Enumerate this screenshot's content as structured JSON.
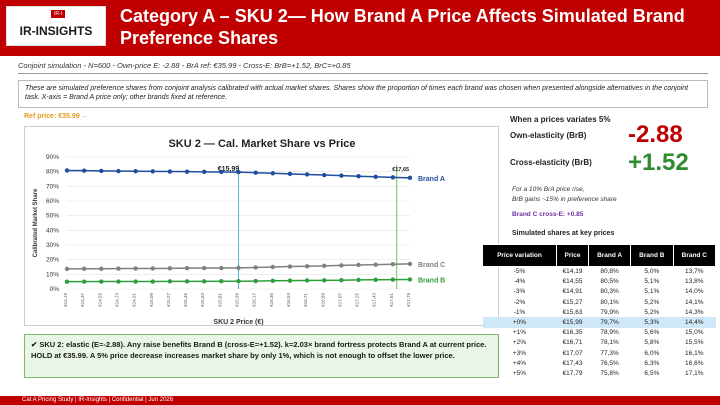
{
  "header": {
    "logo_text": "IR-INSIGHTS",
    "logo_badge": "IR-I",
    "title": "Category A – SKU 2— How Brand A Price Affects Simulated Brand Preference Shares"
  },
  "subtitle": "Conjoint simulation - N=600 - Own-price E: -2.88 - BrA ref: €35.99 - Cross-E: BrB=+1.52, BrC=+0.85",
  "description": "These are simulated preference shares from conjoint analysis calibrated with actual market shares. Shares show the proportion of times each brand was chosen when presented alongside alternatives in the conjoint task.  X-axis = Brand A price only; other brands fixed at reference.",
  "ref_price": "Ref price: €35.99 ←",
  "chart_data": {
    "type": "line",
    "title": "SKU 2 — Cal. Market Share vs Price",
    "xlabel": "SKU 2 Price (€)",
    "ylabel": "Calibrated Market Share",
    "ylim": [
      0,
      90
    ],
    "yticks": [
      "0%",
      "10%",
      "20%",
      "30%",
      "40%",
      "50%",
      "60%",
      "70%",
      "80%",
      "90%"
    ],
    "markers": [
      {
        "label": "€15,99",
        "x": 15.99,
        "color": "#5bb5e6"
      },
      {
        "label": "€17,65",
        "x": 17.65,
        "color": "#7cc24a"
      }
    ],
    "x": [
      14.19,
      14.37,
      14.55,
      14.73,
      14.91,
      15.09,
      15.27,
      15.45,
      15.63,
      15.81,
      15.99,
      16.17,
      16.35,
      16.53,
      16.71,
      16.89,
      17.07,
      17.25,
      17.43,
      17.61,
      17.79
    ],
    "series": [
      {
        "name": "Brand A",
        "color": "#1f4e9e",
        "values": [
          80.8,
          80.7,
          80.5,
          80.4,
          80.3,
          80.2,
          80.1,
          80.0,
          79.9,
          79.8,
          79.7,
          79.3,
          78.9,
          78.5,
          78.1,
          77.7,
          77.3,
          76.9,
          76.5,
          76.1,
          75.8
        ]
      },
      {
        "name": "Brand B",
        "color": "#2e9e3a",
        "values": [
          5.0,
          5.0,
          5.1,
          5.1,
          5.1,
          5.1,
          5.2,
          5.2,
          5.2,
          5.3,
          5.3,
          5.4,
          5.6,
          5.7,
          5.8,
          5.9,
          6.0,
          6.2,
          6.3,
          6.4,
          6.5
        ]
      },
      {
        "name": "Brand C",
        "color": "#808080",
        "values": [
          13.7,
          13.8,
          13.8,
          13.9,
          14.0,
          14.0,
          14.1,
          14.2,
          14.3,
          14.3,
          14.4,
          14.7,
          15.0,
          15.3,
          15.5,
          15.8,
          16.1,
          16.4,
          16.6,
          16.9,
          17.1
        ]
      }
    ]
  },
  "callout": "✔ SKU 2: elastic (E=-2.88). Any raise benefits Brand B (cross-E=+1.52). k=2.03× brand fortress protects Brand A at current price. HOLD at €35.99. A 5% price decrease increases market share by only 1%, which is not enough to offset the lower price.",
  "right": {
    "title": "When a prices variates 5%",
    "own_label": "Own-elasticity (BrB)",
    "own_value": "-2.88",
    "cross_label": "Cross-elasticity (BrB)",
    "cross_value": "+1.52",
    "note1": "For a 10% BrA price rise,",
    "note2": "BrB gains ~15% in preference share",
    "crossc": "Brand C cross-E: +0.85",
    "table_title": "Simulated shares at key prices"
  },
  "table": {
    "headers": [
      "Price variation",
      "Price",
      "Brand A",
      "Brand B",
      "Brand C"
    ],
    "rows": [
      [
        "-5%",
        "€14,19",
        "80,8%",
        "5,0%",
        "13,7%"
      ],
      [
        "-4%",
        "€14,55",
        "80,5%",
        "5,1%",
        "13,8%"
      ],
      [
        "-3%",
        "€14,91",
        "80,3%",
        "5,1%",
        "14,0%"
      ],
      [
        "-2%",
        "€15,27",
        "80,1%",
        "5,2%",
        "14,1%"
      ],
      [
        "-1%",
        "€15,63",
        "79,9%",
        "5,2%",
        "14,3%"
      ],
      [
        "+0%",
        "€15,99",
        "79,7%",
        "5,3%",
        "14,4%"
      ],
      [
        "+1%",
        "€16,35",
        "78,9%",
        "5,6%",
        "15,0%"
      ],
      [
        "+2%",
        "€16,71",
        "78,1%",
        "5,8%",
        "15,5%"
      ],
      [
        "+3%",
        "€17,07",
        "77,3%",
        "6,0%",
        "16,1%"
      ],
      [
        "+4%",
        "€17,43",
        "76,5%",
        "6,3%",
        "16,6%"
      ],
      [
        "+5%",
        "€17,79",
        "75,8%",
        "6,5%",
        "17,1%"
      ]
    ]
  },
  "footer": "Cat A Pricing Study  |  IR-Insights  |  Confidential  |  Jun 2026"
}
